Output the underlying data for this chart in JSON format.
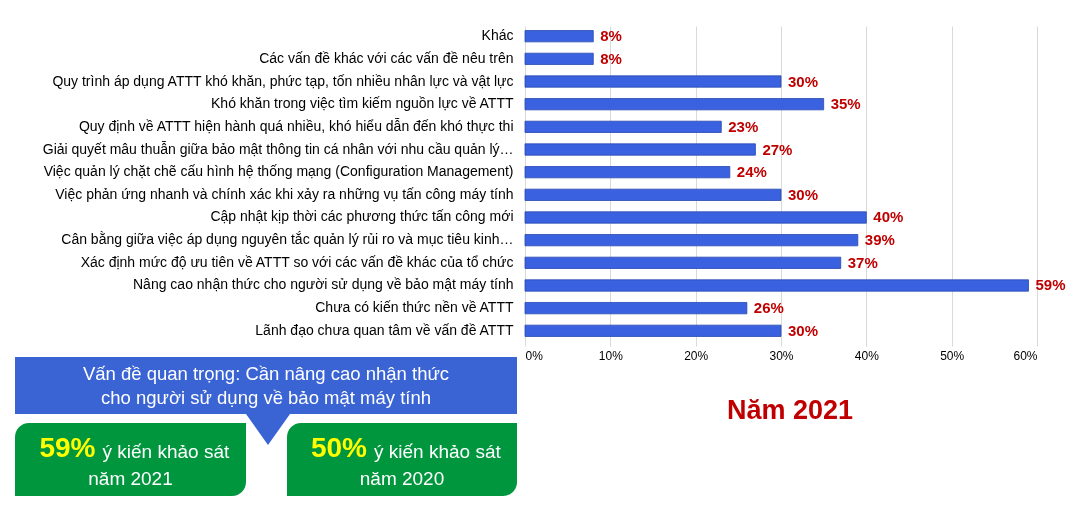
{
  "chart_data": [
    {
      "type": "bar",
      "orientation": "horizontal",
      "title": "Năm 2021",
      "categories": [
        "Khác",
        "Các vấn đề khác với các vấn đề nêu trên",
        "Quy trình áp dụng ATTT khó khăn, phức tạp, tốn nhiều nhân lực và vật lực",
        "Khó khăn trong việc tìm kiếm nguồn lực về ATTT",
        "Quy định về ATTT hiện hành quá nhiều, khó hiểu dẫn đến khó thực thi",
        "Giải quyết mâu thuẫn giữa bảo mật thông tin cá nhân với nhu cầu quản lý…",
        "Việc quản lý chặt chẽ cấu hình hệ thống mạng (Configuration Management)",
        "Việc phản ứng nhanh và chính xác khi xảy ra những vụ tấn công máy tính",
        "Cập nhật kịp thời các phương thức tấn công mới",
        "Cân bằng giữa việc áp dụng nguyên tắc quản lý rủi ro và mục tiêu kinh…",
        "Xác định mức độ ưu tiên về ATTT so với các vấn đề khác của tổ chức",
        "Nâng cao nhận thức cho người sử dụng về bảo mật máy tính",
        "Chưa có kiến thức nền về ATTT",
        "Lãnh đạo chưa quan tâm về vấn đề ATTT"
      ],
      "values": [
        8,
        8,
        30,
        35,
        23,
        27,
        24,
        30,
        40,
        39,
        37,
        59,
        26,
        30
      ],
      "value_labels": [
        "8%",
        "8%",
        "30%",
        "35%",
        "23%",
        "27%",
        "24%",
        "30%",
        "40%",
        "39%",
        "37%",
        "59%",
        "26%",
        "30%"
      ],
      "color": "#3a62e0",
      "xlim": [
        0,
        60
      ],
      "xticks": [
        {
          "value": 0,
          "label": "0%"
        },
        {
          "value": 10,
          "label": "10%"
        },
        {
          "value": 20,
          "label": "20%"
        },
        {
          "value": 30,
          "label": "30%"
        },
        {
          "value": 40,
          "label": "40%"
        },
        {
          "value": 50,
          "label": "50%"
        },
        {
          "value": 60,
          "label": "60%"
        }
      ],
      "grid": "x"
    },
    {
      "type": "other",
      "annotations": [
        "Vấn đề quan trọng: Cần nâng cao nhận thức cho người sử dụng về bảo mật máy tính",
        "59%",
        "ý kiến khảo sát năm 2021",
        "50%",
        "ý kiến khảo sát năm 2020"
      ],
      "colors": [
        "#3a63d4",
        "#00963e",
        "#00963e"
      ]
    }
  ]
}
